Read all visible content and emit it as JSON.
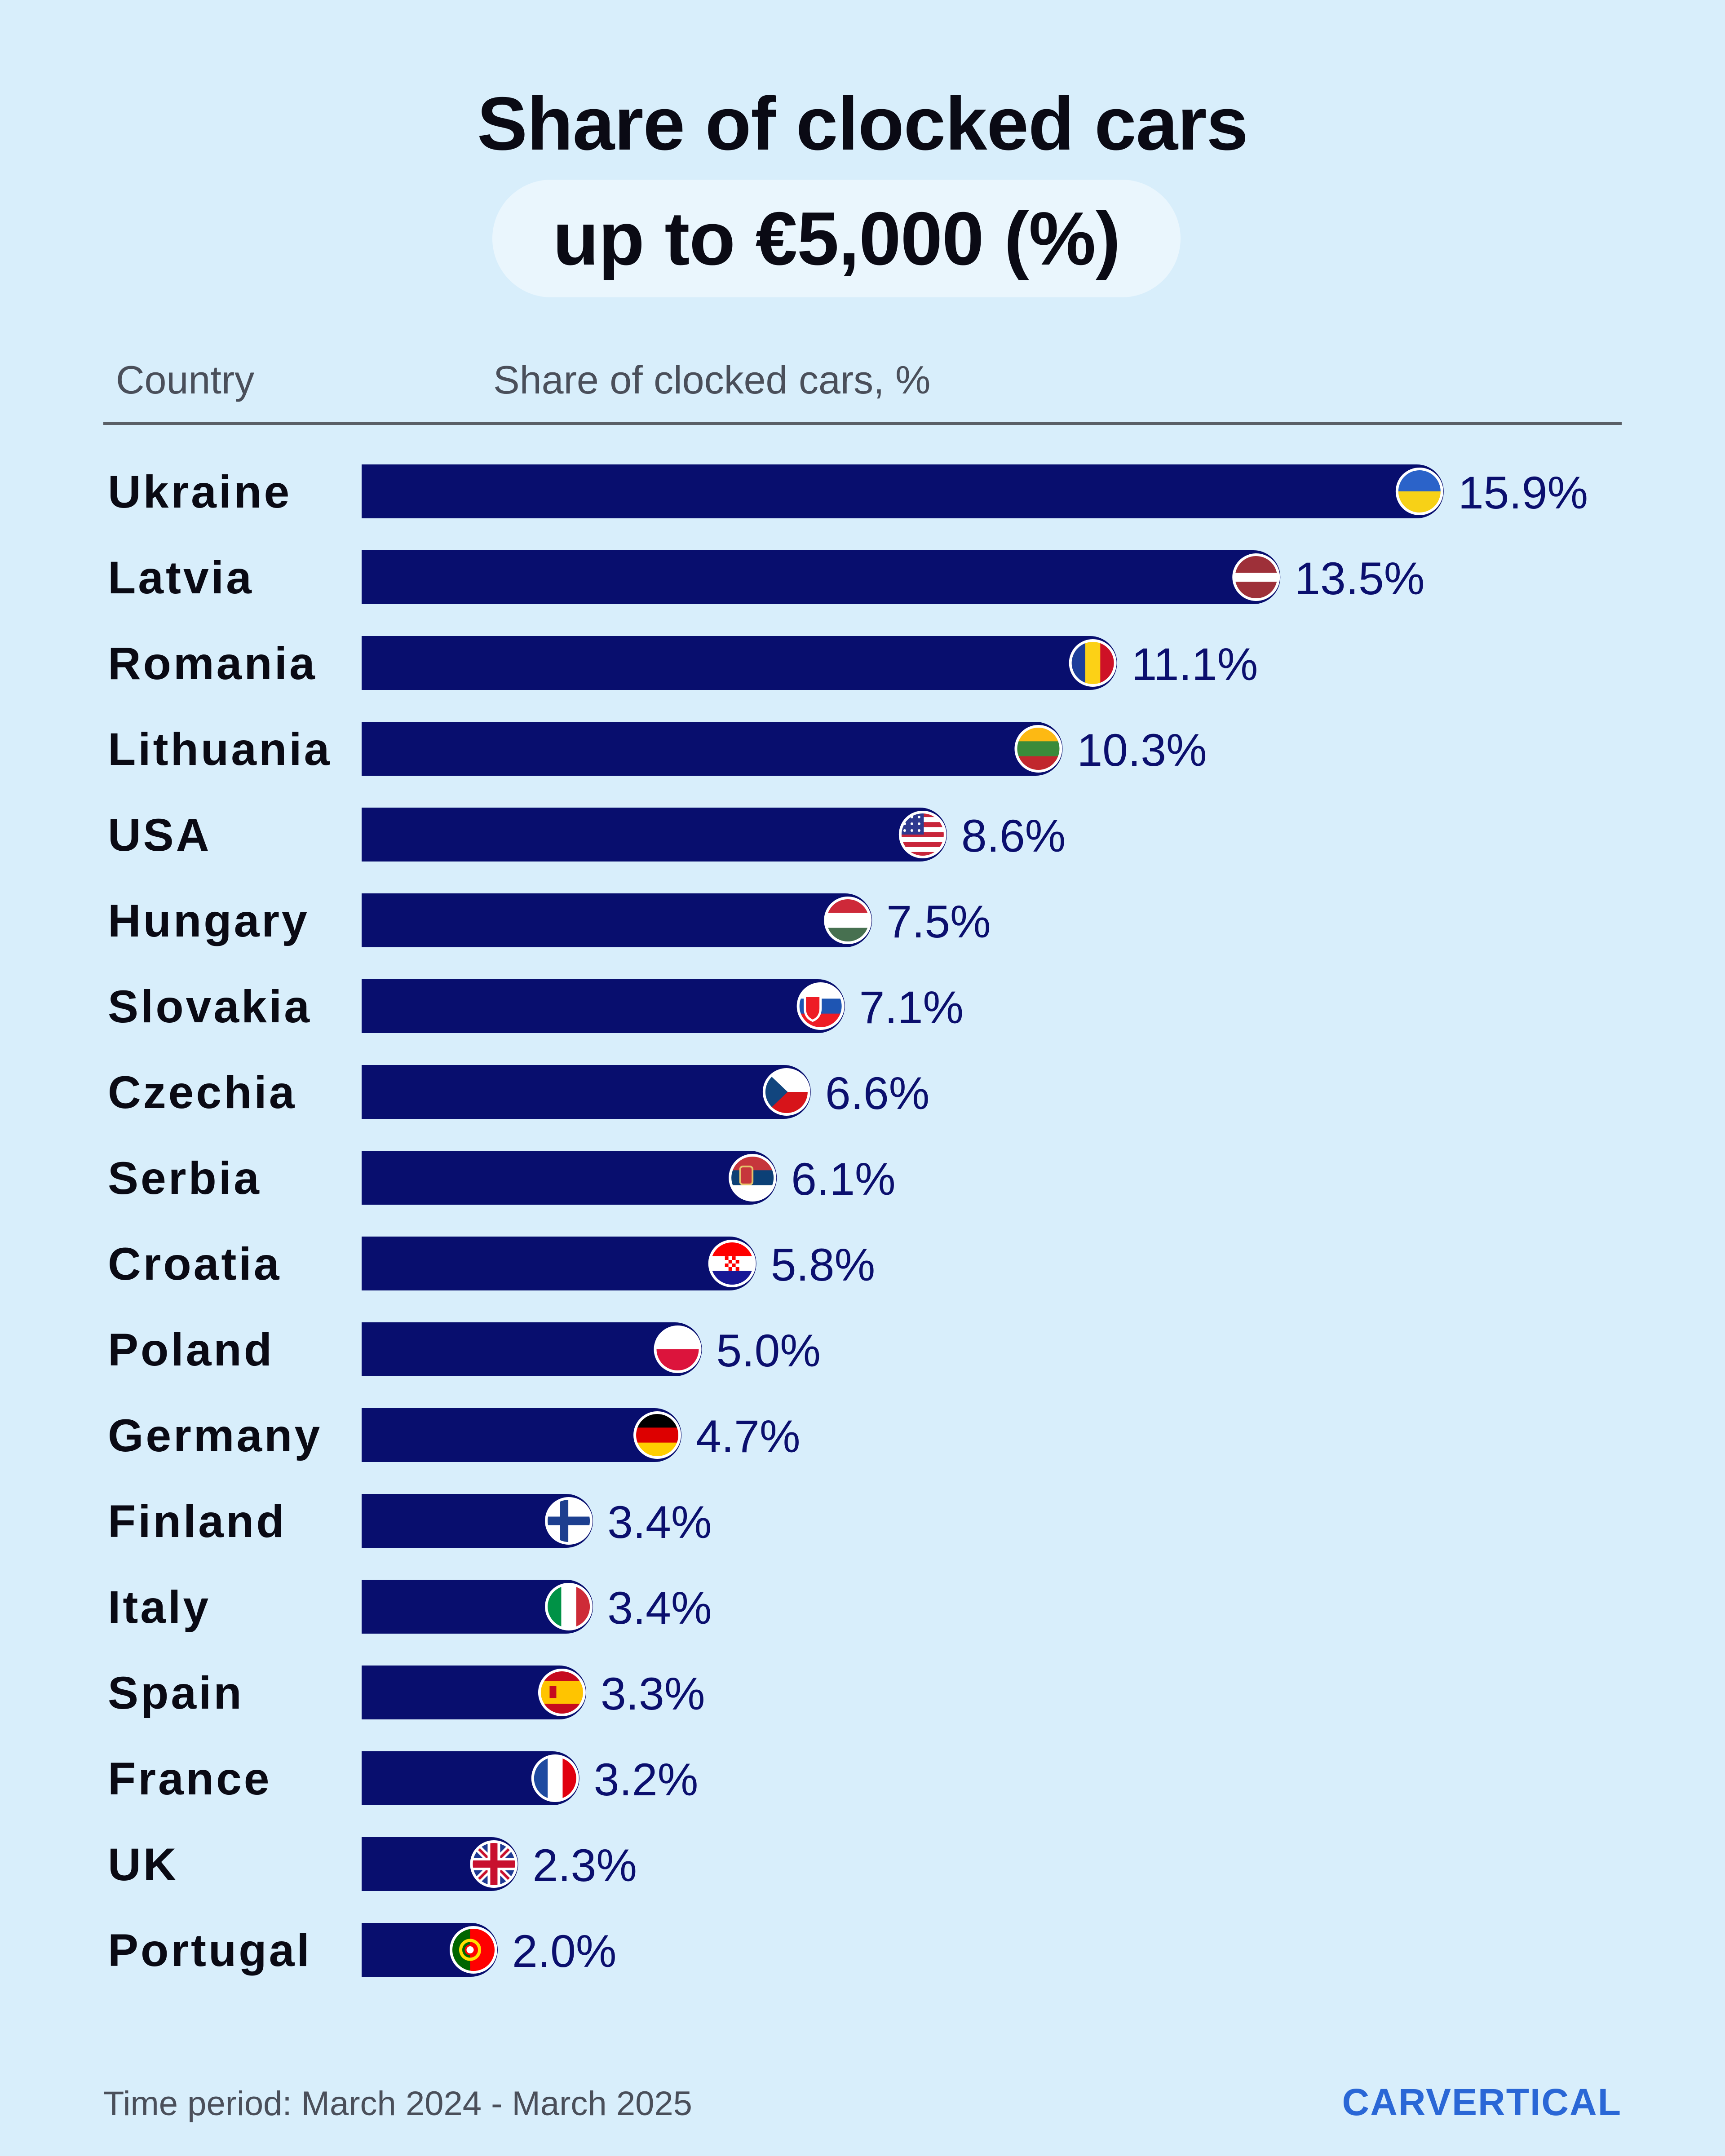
{
  "title": "Share of clocked cars",
  "subtitle": "up to €5,000 (%)",
  "header": {
    "country": "Country",
    "share": "Share of clocked cars, %"
  },
  "footer": "Time period: March 2024 - March 2025",
  "logo": "CARVERTICAL",
  "colors": {
    "bar": "#080e6e",
    "background": "#d8eefb",
    "label": "#0b0f6e",
    "logo": "#2a67d6"
  },
  "chart_data": {
    "type": "bar",
    "orientation": "horizontal",
    "title": "Share of clocked cars up to €5,000 (%)",
    "xlabel": "Share of clocked cars, %",
    "ylabel": "Country",
    "xlim": [
      0,
      16.5
    ],
    "categories": [
      "Ukraine",
      "Latvia",
      "Romania",
      "Lithuania",
      "USA",
      "Hungary",
      "Slovakia",
      "Czechia",
      "Serbia",
      "Croatia",
      "Poland",
      "Germany",
      "Finland",
      "Italy",
      "Spain",
      "France",
      "UK",
      "Portugal"
    ],
    "values": [
      15.9,
      13.5,
      11.1,
      10.3,
      8.6,
      7.5,
      7.1,
      6.6,
      6.1,
      5.8,
      5.0,
      4.7,
      3.4,
      3.4,
      3.3,
      3.2,
      2.3,
      2.0
    ],
    "value_labels": [
      "15.9%",
      "13.5%",
      "11.1%",
      "10.3%",
      "8.6%",
      "7.5%",
      "7.1%",
      "6.6%",
      "6.1%",
      "5.8%",
      "5.0%",
      "4.7%",
      "3.4%",
      "3.4%",
      "3.3%",
      "3.2%",
      "2.3%",
      "2.0%"
    ],
    "flags": [
      "ukraine-flag",
      "latvia-flag",
      "romania-flag",
      "lithuania-flag",
      "usa-flag",
      "hungary-flag",
      "slovakia-flag",
      "czechia-flag",
      "serbia-flag",
      "croatia-flag",
      "poland-flag",
      "germany-flag",
      "finland-flag",
      "italy-flag",
      "spain-flag",
      "france-flag",
      "uk-flag",
      "portugal-flag"
    ]
  }
}
